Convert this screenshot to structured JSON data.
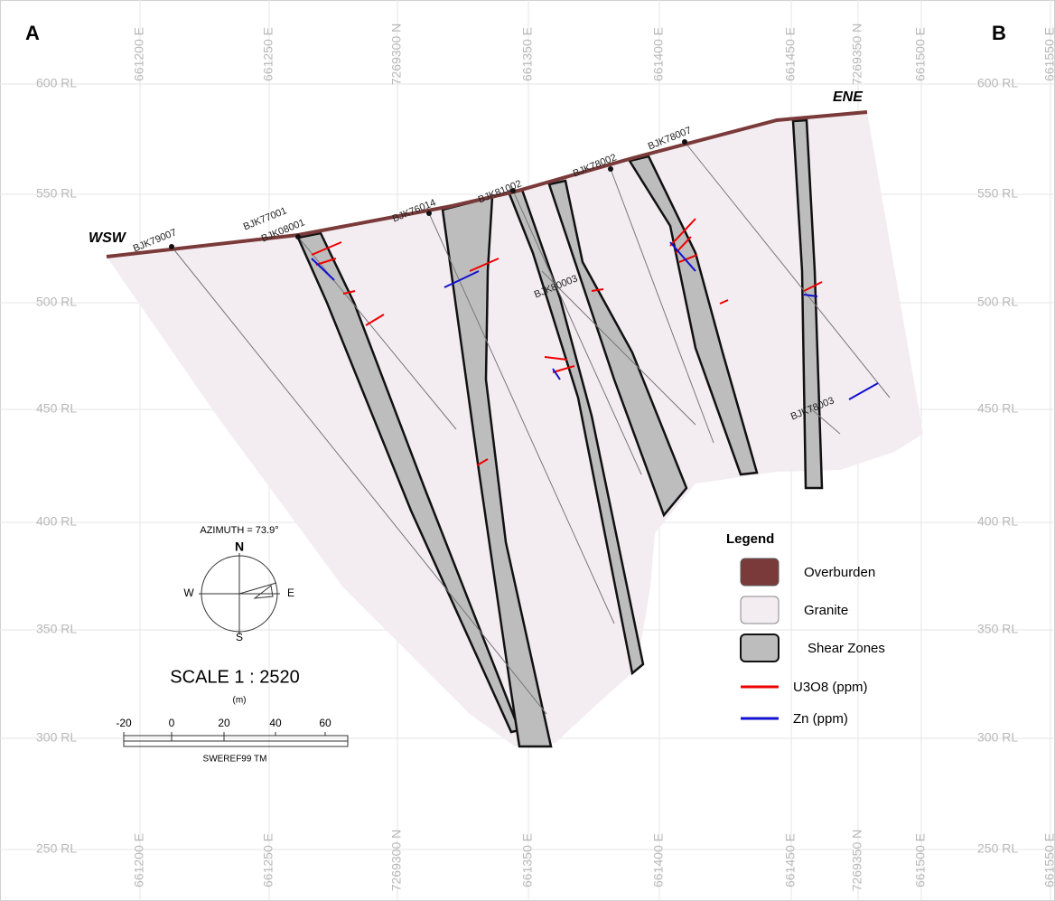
{
  "panels": {
    "left": "A",
    "right": "B"
  },
  "rl_labels": [
    "600 RL",
    "550 RL",
    "500 RL",
    "450 RL",
    "400 RL",
    "350 RL",
    "300 RL",
    "250 RL"
  ],
  "easting_labels": [
    "661200 E",
    "661250 E",
    "7269300 N",
    "661350 E",
    "661400 E",
    "661450 E",
    "7269350 N",
    "661500 E",
    "661550 E"
  ],
  "directions": {
    "west": "WSW",
    "east": "ENE"
  },
  "drillholes": [
    "BJK79007",
    "BJK77001",
    "BJK08001",
    "BJK76014",
    "BJK81002",
    "BJK78002",
    "BJK78007",
    "BJK80003",
    "BJK78003"
  ],
  "compass": {
    "azimuth": "AZIMUTH = 73.9°",
    "north": "N",
    "south": "S",
    "west": "W",
    "east": "E"
  },
  "scale": {
    "title": "SCALE 1 : 2520",
    "unit": "(m)",
    "ticks": [
      "-20",
      "0",
      "20",
      "40",
      "60"
    ],
    "datum": "SWEREF99 TM"
  },
  "legend": {
    "title": "Legend",
    "items": [
      "Overburden",
      "Granite",
      "Shear Zones",
      "U3O8 (ppm)",
      "Zn (ppm)"
    ]
  }
}
